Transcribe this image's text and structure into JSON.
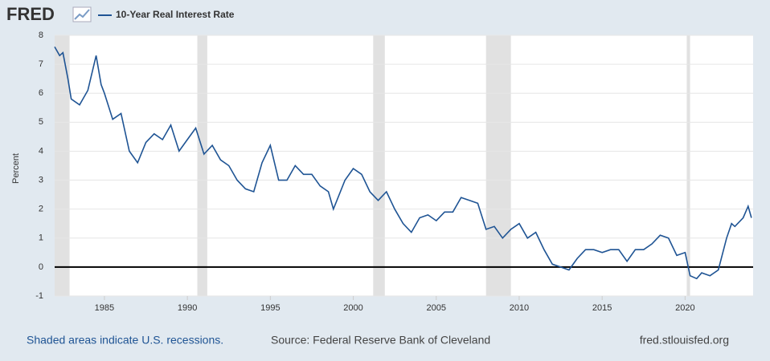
{
  "header": {
    "logo": "FRED"
  },
  "chart_data": {
    "type": "line",
    "y_label": "Percent",
    "x": [
      1982.0,
      1982.3,
      1982.5,
      1982.8,
      1983.0,
      1983.5,
      1984.0,
      1984.5,
      1984.8,
      1985.0,
      1985.5,
      1986.0,
      1986.5,
      1987.0,
      1987.5,
      1988.0,
      1988.5,
      1989.0,
      1989.5,
      1990.0,
      1990.5,
      1991.0,
      1991.5,
      1992.0,
      1992.5,
      1993.0,
      1993.5,
      1994.0,
      1994.5,
      1995.0,
      1995.5,
      1996.0,
      1996.5,
      1997.0,
      1997.5,
      1998.0,
      1998.5,
      1998.8,
      1999.5,
      2000.0,
      2000.5,
      2001.0,
      2001.5,
      2002.0,
      2002.5,
      2003.0,
      2003.5,
      2004.0,
      2004.5,
      2005.0,
      2005.5,
      2006.0,
      2006.5,
      2007.0,
      2007.5,
      2008.0,
      2008.5,
      2009.0,
      2009.5,
      2010.0,
      2010.5,
      2011.0,
      2011.5,
      2012.0,
      2012.5,
      2013.0,
      2013.5,
      2014.0,
      2014.5,
      2015.0,
      2015.5,
      2016.0,
      2016.5,
      2017.0,
      2017.5,
      2018.0,
      2018.5,
      2019.0,
      2019.5,
      2020.0,
      2020.3,
      2020.7,
      2021.0,
      2021.5,
      2022.0,
      2022.5,
      2022.8,
      2023.0,
      2023.5,
      2023.8,
      2024.0
    ],
    "series": [
      {
        "name": "10-Year Real Interest Rate",
        "color": "#1f5494",
        "values": [
          7.6,
          7.3,
          7.4,
          6.5,
          5.8,
          5.6,
          6.1,
          7.3,
          6.3,
          6.0,
          5.1,
          5.3,
          4.0,
          3.6,
          4.3,
          4.6,
          4.4,
          4.9,
          4.0,
          4.4,
          4.8,
          3.9,
          4.2,
          3.7,
          3.5,
          3.0,
          2.7,
          2.6,
          3.6,
          4.2,
          3.0,
          3.0,
          3.5,
          3.2,
          3.2,
          2.8,
          2.6,
          2.0,
          3.0,
          3.4,
          3.2,
          2.6,
          2.3,
          2.6,
          2.0,
          1.5,
          1.2,
          1.7,
          1.8,
          1.6,
          1.9,
          1.9,
          2.4,
          2.3,
          2.2,
          1.3,
          1.4,
          1.0,
          1.3,
          1.5,
          1.0,
          1.2,
          0.6,
          0.1,
          0.0,
          -0.1,
          0.3,
          0.6,
          0.6,
          0.5,
          0.6,
          0.6,
          0.2,
          0.6,
          0.6,
          0.8,
          1.1,
          1.0,
          0.4,
          0.5,
          -0.3,
          -0.4,
          -0.2,
          -0.3,
          -0.1,
          1.0,
          1.5,
          1.4,
          1.7,
          2.1,
          1.7
        ]
      }
    ],
    "recessions": [
      [
        1982.0,
        1982.9
      ],
      [
        1990.6,
        1991.2
      ],
      [
        2001.2,
        2001.9
      ],
      [
        2008.0,
        2009.5
      ],
      [
        2020.1,
        2020.3
      ]
    ],
    "xlim": [
      1982.0,
      2024.1
    ],
    "xticks": [
      1985,
      1990,
      1995,
      2000,
      2005,
      2010,
      2015,
      2020
    ],
    "ylim": [
      -1,
      8
    ],
    "yticks": [
      -1,
      0,
      1,
      2,
      3,
      4,
      5,
      6,
      7,
      8
    ],
    "grid": true
  },
  "footer": {
    "note": "Shaded areas indicate U.S. recessions.",
    "source": "Source: Federal Reserve Bank of Cleveland",
    "site": "fred.stlouisfed.org"
  }
}
